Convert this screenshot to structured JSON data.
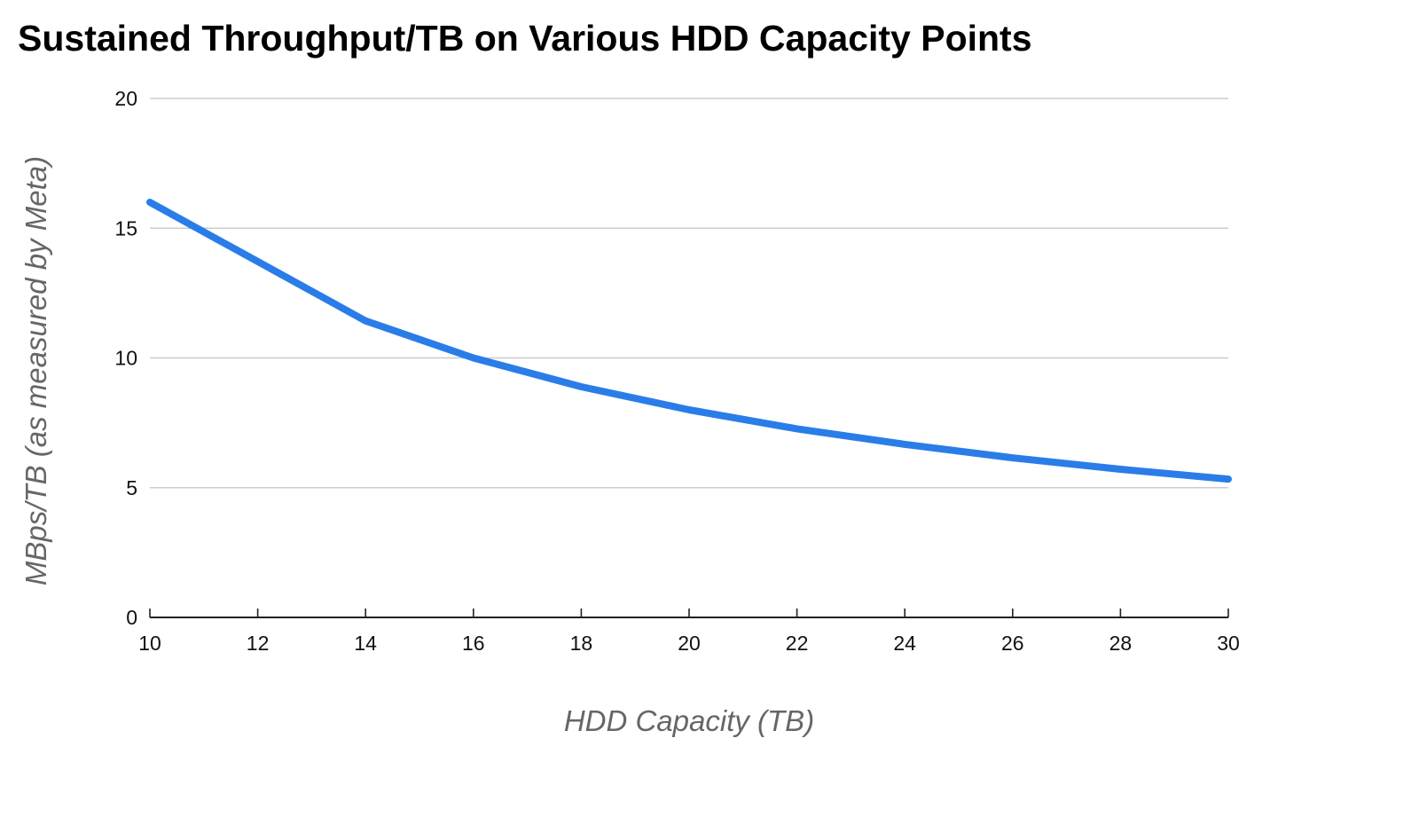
{
  "chart_data": {
    "type": "line",
    "title": "Sustained Throughput/TB on Various HDD Capacity Points",
    "xlabel": "HDD Capacity (TB)",
    "ylabel": "MBps/TB (as measured by Meta)",
    "xlim": [
      10,
      30
    ],
    "ylim": [
      0,
      20
    ],
    "x_ticks": [
      10,
      12,
      14,
      16,
      18,
      20,
      22,
      24,
      26,
      28,
      30
    ],
    "y_ticks": [
      0,
      5,
      10,
      15,
      20
    ],
    "grid": true,
    "legend": "none",
    "series": [
      {
        "color": "#2a7de8",
        "points": [
          {
            "x": 10,
            "y": 16
          },
          {
            "x": 14,
            "y": 11.43
          },
          {
            "x": 16,
            "y": 10
          },
          {
            "x": 18,
            "y": 8.89
          },
          {
            "x": 20,
            "y": 8
          },
          {
            "x": 22,
            "y": 7.27
          },
          {
            "x": 24,
            "y": 6.67
          },
          {
            "x": 26,
            "y": 6.15
          },
          {
            "x": 28,
            "y": 5.71
          },
          {
            "x": 30,
            "y": 5.33
          }
        ]
      }
    ]
  }
}
